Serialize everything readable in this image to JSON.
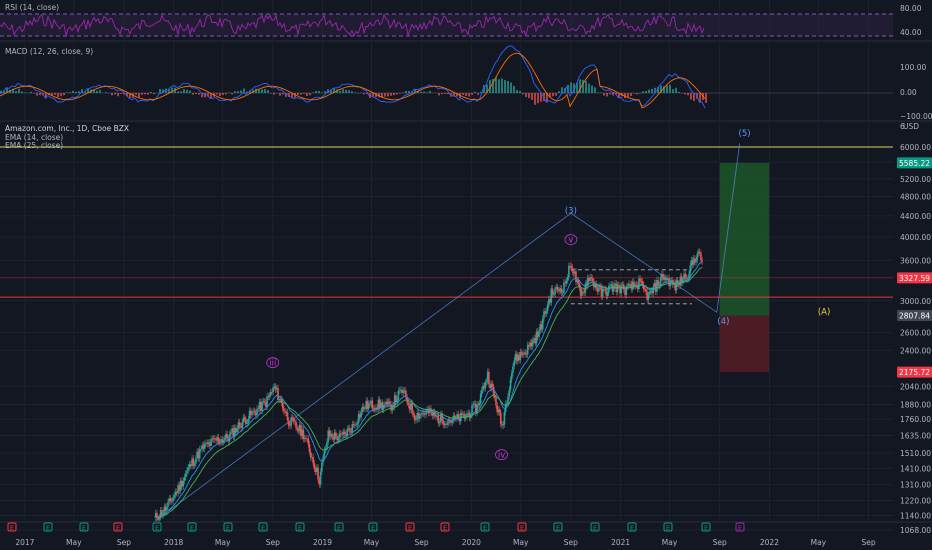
{
  "colors": {
    "bg": "#131722",
    "grid": "#1e222d",
    "axis_text": "#b2b5be",
    "candle_up": "#26a69a",
    "candle_down": "#ef5350",
    "rsi": "#9c27b0",
    "macd_line": "#2962ff",
    "signal_line": "#ff6d00",
    "ema14": "#2196f3",
    "ema25": "#4caf50",
    "hline_yellow": "#d4d45a",
    "hline_red": "#e53935",
    "wave_main": "#5b9cf6",
    "wave_minor": "#c03bd3",
    "wave_A": "#f5d442",
    "tp_zone": "#1e5a2a",
    "sl_zone": "#5a1e26",
    "tag_green": "#089981",
    "tag_red": "#f23645",
    "tag_gray": "#434651"
  },
  "panes": {
    "rsi": {
      "label": "RSI (14, close)",
      "ticks": [
        "80.00",
        "40.00"
      ]
    },
    "macd": {
      "label": "MACD (12, 26, close, 9)",
      "ticks": [
        "100.00",
        "0.00",
        "−100.00"
      ]
    },
    "main": {
      "title": "Amazon.com, Inc., 1D, Cboe BZX",
      "ema_labels": [
        "EMA (14, close)",
        "EMA (25, close)"
      ],
      "currency": "USD",
      "axis_ticks": [
        6000,
        5600,
        5200,
        4800,
        4400,
        4000,
        3600,
        3000,
        2600,
        2400,
        2040,
        1880,
        1760,
        1635,
        1510,
        1410,
        1310,
        1220,
        1140,
        1068
      ],
      "axis_tick_labels": [
        "6000.00",
        "5600.00",
        "5200.00",
        "4800.00",
        "4400.00",
        "4000.00",
        "3600.00",
        "3000.00",
        "2600.00",
        "2400.00",
        "2040.00",
        "1880.00",
        "1760.00",
        "1635.00",
        "1510.00",
        "1410.00",
        "1310.00",
        "1220.00",
        "1140.00",
        "1068.00"
      ],
      "price_tags": [
        {
          "label": "5585.22",
          "value": 5585.22,
          "color": "#089981"
        },
        {
          "label": "3327.59",
          "value": 3327.59,
          "color": "#f23645"
        },
        {
          "label": "2807.84",
          "value": 2807.84,
          "color": "#434651"
        },
        {
          "label": "2175.72",
          "value": 2175.72,
          "color": "#f23645"
        }
      ],
      "partial_tick": "6"
    }
  },
  "x_axis": [
    "2017",
    "May",
    "Sep",
    "2018",
    "May",
    "Sep",
    "2019",
    "May",
    "Sep",
    "2020",
    "May",
    "Sep",
    "2021",
    "May",
    "Sep",
    "2022",
    "May",
    "Sep"
  ],
  "chart_data": {
    "type": "line",
    "symbol": "AMZN",
    "series": [
      {
        "name": "Amazon.com, Inc., 1D, Cboe BZX",
        "points": [
          [
            "2017-11-15",
            1125
          ],
          [
            "2017-12-15",
            1180
          ],
          [
            "2018-01-15",
            1300
          ],
          [
            "2018-02-15",
            1450
          ],
          [
            "2018-03-15",
            1550
          ],
          [
            "2018-04-15",
            1600
          ],
          [
            "2018-05-15",
            1620
          ],
          [
            "2018-06-15",
            1730
          ],
          [
            "2018-07-15",
            1810
          ],
          [
            "2018-08-15",
            1900
          ],
          [
            "2018-09-05",
            2030
          ],
          [
            "2018-10-10",
            1750
          ],
          [
            "2018-11-15",
            1650
          ],
          [
            "2018-12-24",
            1340
          ],
          [
            "2019-01-15",
            1640
          ],
          [
            "2019-02-15",
            1620
          ],
          [
            "2019-03-15",
            1700
          ],
          [
            "2019-04-15",
            1870
          ],
          [
            "2019-05-15",
            1880
          ],
          [
            "2019-06-15",
            1860
          ],
          [
            "2019-07-15",
            2000
          ],
          [
            "2019-08-15",
            1790
          ],
          [
            "2019-09-15",
            1820
          ],
          [
            "2019-10-15",
            1760
          ],
          [
            "2019-11-15",
            1750
          ],
          [
            "2019-12-15",
            1780
          ],
          [
            "2020-01-15",
            1860
          ],
          [
            "2020-02-10",
            2150
          ],
          [
            "2020-03-16",
            1700
          ],
          [
            "2020-04-15",
            2300
          ],
          [
            "2020-05-15",
            2400
          ],
          [
            "2020-06-15",
            2600
          ],
          [
            "2020-07-15",
            3100
          ],
          [
            "2020-08-15",
            3200
          ],
          [
            "2020-09-02",
            3550
          ],
          [
            "2020-09-25",
            3050
          ],
          [
            "2020-10-15",
            3350
          ],
          [
            "2020-11-15",
            3100
          ],
          [
            "2020-12-15",
            3200
          ],
          [
            "2021-01-15",
            3150
          ],
          [
            "2021-02-15",
            3250
          ],
          [
            "2021-03-10",
            3050
          ],
          [
            "2021-04-15",
            3350
          ],
          [
            "2021-05-15",
            3200
          ],
          [
            "2021-06-15",
            3400
          ],
          [
            "2021-07-08",
            3720
          ],
          [
            "2021-07-20",
            3580
          ]
        ]
      },
      {
        "name": "EMA (14, close)",
        "values": "tracks price"
      },
      {
        "name": "EMA (25, close)",
        "values": "tracks price"
      }
    ],
    "wave_labels": [
      {
        "text": "(3)",
        "x": "2020-09-01",
        "y": 4450
      },
      {
        "text": "(4)",
        "x": "2021-09-10",
        "y": 2700
      },
      {
        "text": "(5)",
        "x": "2021-11-01",
        "y": 6300
      },
      {
        "text": "iii",
        "x": "2018-09-01",
        "y": 2240
      },
      {
        "text": "iv",
        "x": "2020-03-15",
        "y": 1480
      },
      {
        "text": "v",
        "x": "2020-09-01",
        "y": 3900
      },
      {
        "text": "(A)",
        "x": "2022-05-15",
        "y": 2820
      }
    ],
    "wave_path": [
      [
        "2017-11-15",
        1110
      ],
      [
        "2020-09-01",
        4450
      ],
      [
        "2021-08-25",
        2850
      ],
      [
        "2021-10-20",
        6100
      ]
    ],
    "horizontal_lines": [
      6000,
      3050
    ],
    "channel": {
      "x": [
        "2020-09-01",
        "2021-06-25"
      ],
      "top": [
        3450,
        3450
      ],
      "bottom": [
        2960,
        2960
      ]
    },
    "long_position": {
      "x": [
        "2021-09-01",
        "2021-12-31"
      ],
      "entry": 2807.84,
      "target": 5585.22,
      "stop": 2175.72
    },
    "ylim": [
      1040,
      6200
    ],
    "xlim": [
      "2016-11-01",
      "2022-10-31"
    ],
    "y_scale": "log"
  }
}
